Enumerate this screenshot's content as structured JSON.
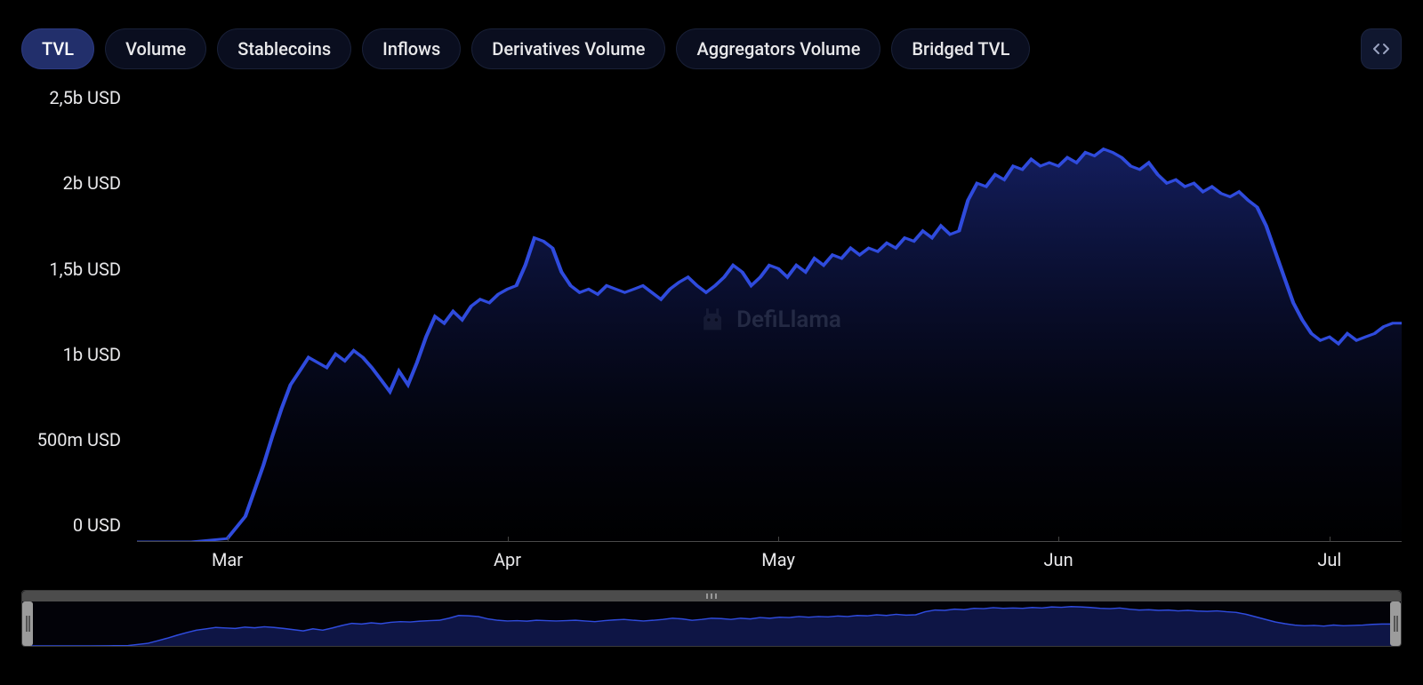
{
  "tabs": [
    {
      "id": "tvl",
      "label": "TVL",
      "active": true
    },
    {
      "id": "volume",
      "label": "Volume",
      "active": false
    },
    {
      "id": "stablecoins",
      "label": "Stablecoins",
      "active": false
    },
    {
      "id": "inflows",
      "label": "Inflows",
      "active": false
    },
    {
      "id": "derivatives-volume",
      "label": "Derivatives Volume",
      "active": false
    },
    {
      "id": "aggregators-volume",
      "label": "Aggregators Volume",
      "active": false
    },
    {
      "id": "bridged-tvl",
      "label": "Bridged TVL",
      "active": false
    }
  ],
  "expand_button_label": "expand",
  "watermark_text": "DefiLlama",
  "chart": {
    "type": "area",
    "line_color": "#2f4bdd",
    "line_width": 3,
    "fill_top_color": "rgba(23,35,110,0.85)",
    "fill_bottom_color": "rgba(5,8,30,0.05)",
    "background_color": "#000000",
    "axis_color": "#4a4a4a",
    "tick_color": "#444444",
    "label_color": "#e8e8ea",
    "label_fontsize": 20,
    "y_axis": {
      "min": 0,
      "max": 2.6,
      "ticks": [
        {
          "value": 0.0,
          "label": "0 USD"
        },
        {
          "value": 0.5,
          "label": "500m USD"
        },
        {
          "value": 1.0,
          "label": "1b USD"
        },
        {
          "value": 1.5,
          "label": "1,5b USD"
        },
        {
          "value": 2.0,
          "label": "2b USD"
        },
        {
          "value": 2.5,
          "label": "2,5b USD"
        }
      ]
    },
    "x_axis": {
      "min": 0,
      "max": 140,
      "ticks": [
        {
          "value": 10,
          "label": "Mar"
        },
        {
          "value": 41,
          "label": "Apr"
        },
        {
          "value": 71,
          "label": "May"
        },
        {
          "value": 102,
          "label": "Jun"
        },
        {
          "value": 132,
          "label": "Jul"
        }
      ]
    },
    "series": [
      {
        "name": "TVL",
        "data": [
          [
            0,
            0.0
          ],
          [
            2,
            0.0
          ],
          [
            4,
            0.0
          ],
          [
            6,
            0.0
          ],
          [
            8,
            0.01
          ],
          [
            10,
            0.02
          ],
          [
            12,
            0.15
          ],
          [
            13,
            0.3
          ],
          [
            14,
            0.45
          ],
          [
            15,
            0.62
          ],
          [
            16,
            0.78
          ],
          [
            17,
            0.92
          ],
          [
            18,
            1.0
          ],
          [
            19,
            1.08
          ],
          [
            20,
            1.05
          ],
          [
            21,
            1.02
          ],
          [
            22,
            1.1
          ],
          [
            23,
            1.06
          ],
          [
            24,
            1.12
          ],
          [
            25,
            1.08
          ],
          [
            26,
            1.02
          ],
          [
            27,
            0.95
          ],
          [
            28,
            0.88
          ],
          [
            29,
            1.0
          ],
          [
            30,
            0.92
          ],
          [
            31,
            1.05
          ],
          [
            32,
            1.2
          ],
          [
            33,
            1.32
          ],
          [
            34,
            1.28
          ],
          [
            35,
            1.35
          ],
          [
            36,
            1.3
          ],
          [
            37,
            1.38
          ],
          [
            38,
            1.42
          ],
          [
            39,
            1.4
          ],
          [
            40,
            1.45
          ],
          [
            41,
            1.48
          ],
          [
            42,
            1.5
          ],
          [
            43,
            1.62
          ],
          [
            44,
            1.78
          ],
          [
            45,
            1.76
          ],
          [
            46,
            1.72
          ],
          [
            47,
            1.58
          ],
          [
            48,
            1.5
          ],
          [
            49,
            1.46
          ],
          [
            50,
            1.48
          ],
          [
            51,
            1.45
          ],
          [
            52,
            1.5
          ],
          [
            53,
            1.48
          ],
          [
            54,
            1.46
          ],
          [
            55,
            1.48
          ],
          [
            56,
            1.5
          ],
          [
            57,
            1.46
          ],
          [
            58,
            1.42
          ],
          [
            59,
            1.48
          ],
          [
            60,
            1.52
          ],
          [
            61,
            1.55
          ],
          [
            62,
            1.5
          ],
          [
            63,
            1.46
          ],
          [
            64,
            1.5
          ],
          [
            65,
            1.55
          ],
          [
            66,
            1.62
          ],
          [
            67,
            1.58
          ],
          [
            68,
            1.5
          ],
          [
            69,
            1.55
          ],
          [
            70,
            1.62
          ],
          [
            71,
            1.6
          ],
          [
            72,
            1.55
          ],
          [
            73,
            1.62
          ],
          [
            74,
            1.58
          ],
          [
            75,
            1.66
          ],
          [
            76,
            1.62
          ],
          [
            77,
            1.68
          ],
          [
            78,
            1.66
          ],
          [
            79,
            1.72
          ],
          [
            80,
            1.68
          ],
          [
            81,
            1.72
          ],
          [
            82,
            1.7
          ],
          [
            83,
            1.75
          ],
          [
            84,
            1.72
          ],
          [
            85,
            1.78
          ],
          [
            86,
            1.76
          ],
          [
            87,
            1.82
          ],
          [
            88,
            1.78
          ],
          [
            89,
            1.85
          ],
          [
            90,
            1.8
          ],
          [
            91,
            1.82
          ],
          [
            92,
            2.0
          ],
          [
            93,
            2.1
          ],
          [
            94,
            2.08
          ],
          [
            95,
            2.15
          ],
          [
            96,
            2.12
          ],
          [
            97,
            2.2
          ],
          [
            98,
            2.18
          ],
          [
            99,
            2.24
          ],
          [
            100,
            2.2
          ],
          [
            101,
            2.22
          ],
          [
            102,
            2.2
          ],
          [
            103,
            2.25
          ],
          [
            104,
            2.22
          ],
          [
            105,
            2.28
          ],
          [
            106,
            2.26
          ],
          [
            107,
            2.3
          ],
          [
            108,
            2.28
          ],
          [
            109,
            2.25
          ],
          [
            110,
            2.2
          ],
          [
            111,
            2.18
          ],
          [
            112,
            2.22
          ],
          [
            113,
            2.15
          ],
          [
            114,
            2.1
          ],
          [
            115,
            2.12
          ],
          [
            116,
            2.08
          ],
          [
            117,
            2.1
          ],
          [
            118,
            2.05
          ],
          [
            119,
            2.08
          ],
          [
            120,
            2.04
          ],
          [
            121,
            2.02
          ],
          [
            122,
            2.05
          ],
          [
            123,
            2.0
          ],
          [
            124,
            1.96
          ],
          [
            125,
            1.85
          ],
          [
            126,
            1.7
          ],
          [
            127,
            1.55
          ],
          [
            128,
            1.4
          ],
          [
            129,
            1.3
          ],
          [
            130,
            1.22
          ],
          [
            131,
            1.18
          ],
          [
            132,
            1.2
          ],
          [
            133,
            1.16
          ],
          [
            134,
            1.22
          ],
          [
            135,
            1.18
          ],
          [
            136,
            1.2
          ],
          [
            137,
            1.22
          ],
          [
            138,
            1.26
          ],
          [
            139,
            1.28
          ],
          [
            140,
            1.28
          ]
        ]
      }
    ]
  },
  "navigator": {
    "track_color": "#4c4c4c",
    "handle_color": "#9c9c9c",
    "line_color": "#2f4bdd",
    "fill_color": "rgba(23,35,110,0.6)",
    "background_color": "#020208",
    "border_color": "#3a3a3a"
  }
}
